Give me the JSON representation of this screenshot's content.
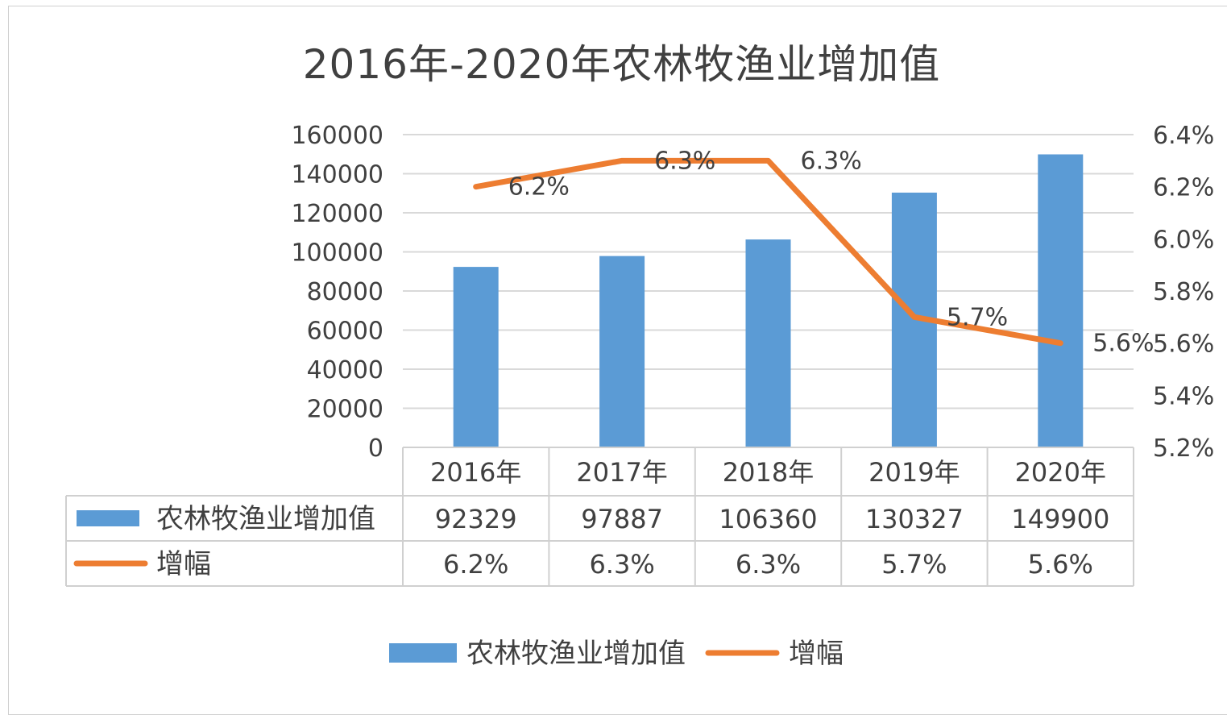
{
  "chart_data": {
    "type": "bar",
    "title": "2016年-2020年农林牧渔业增加值",
    "categories": [
      "2016年",
      "2017年",
      "2018年",
      "2019年",
      "2020年"
    ],
    "series": [
      {
        "name": "农林牧渔业增加值",
        "type": "bar",
        "axis": "left",
        "color": "#5b9bd5",
        "values": [
          92329,
          97887,
          106360,
          130327,
          149900
        ],
        "table_labels": [
          "92329",
          "97887",
          "106360",
          "130327",
          "149900"
        ]
      },
      {
        "name": "增幅",
        "type": "line",
        "axis": "right",
        "color": "#ed7d31",
        "values": [
          6.2,
          6.3,
          6.3,
          5.7,
          5.6
        ],
        "data_labels": [
          "6.2%",
          "6.3%",
          "6.3%",
          "5.7%",
          "5.6%"
        ],
        "table_labels": [
          "6.2%",
          "6.3%",
          "6.3%",
          "5.7%",
          "5.6%"
        ]
      }
    ],
    "y_left": {
      "ylim": [
        0,
        160000
      ],
      "ticks": [
        "0",
        "20000",
        "40000",
        "60000",
        "80000",
        "100000",
        "120000",
        "140000",
        "160000"
      ]
    },
    "y_right": {
      "ylim": [
        5.2,
        6.4
      ],
      "ticks": [
        "5.2%",
        "5.4%",
        "5.6%",
        "5.8%",
        "6.0%",
        "6.2%",
        "6.4%"
      ]
    },
    "grid": true,
    "data_table": true,
    "legend_position": "bottom"
  }
}
